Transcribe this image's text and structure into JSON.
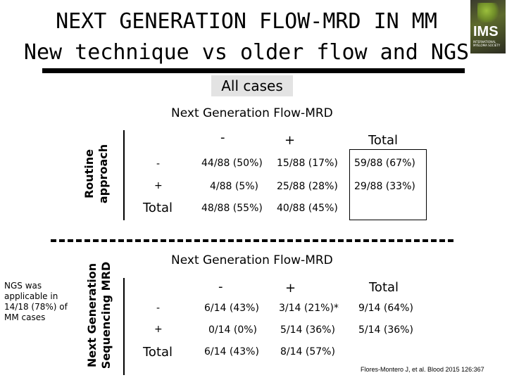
{
  "slide": {
    "title_line1": "NEXT GENERATION FLOW-MRD IN MM",
    "title_line2": "New technique vs older flow and NGS",
    "all_cases_label": "All cases",
    "logo": {
      "text": "IMS",
      "subtext": "INTERNATIONAL MYELOMA SOCIETY"
    },
    "ngs_note": "NGS was applicable in 14/18 (78%) of MM cases",
    "citation": "Flores-Montero J, et al. Blood 2015 126:367"
  },
  "table1": {
    "column_header": "Next Generation Flow-MRD",
    "row_header": "Routine approach",
    "col_labels": [
      "-",
      "+",
      "Total"
    ],
    "rows": [
      {
        "label": "-",
        "cells": [
          "44/88 (50%)",
          "15/88 (17%)",
          "59/88 (67%)"
        ]
      },
      {
        "label": "+",
        "cells": [
          "4/88 (5%)",
          "25/88 (28%)",
          "29/88 (33%)"
        ]
      },
      {
        "label": "Total",
        "cells": [
          "48/88 (55%)",
          "40/88 (45%)",
          ""
        ]
      }
    ]
  },
  "table2": {
    "column_header": "Next Generation Flow-MRD",
    "row_header": "Next Generation Sequencing MRD",
    "col_labels": [
      "-",
      "+",
      "Total"
    ],
    "rows": [
      {
        "label": "-",
        "cells": [
          "6/14 (43%)",
          "3/14 (21%)*",
          "9/14 (64%)"
        ]
      },
      {
        "label": "+",
        "cells": [
          "0/14 (0%)",
          "5/14 (36%)",
          "5/14 (36%)"
        ]
      },
      {
        "label": "Total",
        "cells": [
          "6/14 (43%)",
          "8/14 (57%)",
          ""
        ]
      }
    ]
  }
}
